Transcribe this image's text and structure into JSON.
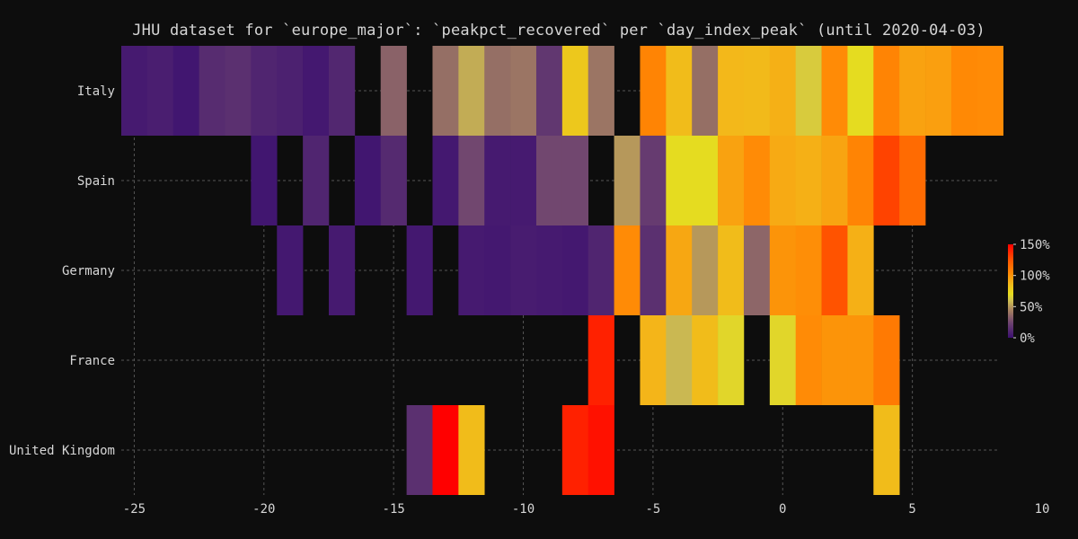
{
  "chart_data": {
    "type": "heatmap",
    "title": "JHU dataset for `europe_major`: `peakpct_recovered` per `day_index_peak` (until 2020-04-03)",
    "xlabel": "",
    "ylabel": "",
    "x_range": [
      -25.5,
      10
    ],
    "x_ticks": [
      -25,
      -20,
      -15,
      -10,
      -5,
      0,
      5,
      10
    ],
    "x_tick_labels": [
      "-25",
      "-20",
      "-15",
      "-10",
      "-5",
      "0",
      "5",
      "10"
    ],
    "rows": [
      "Italy",
      "Spain",
      "Germany",
      "France",
      "United Kingdom"
    ],
    "colorbar": {
      "min": 0,
      "max": 150,
      "ticks": [
        0,
        50,
        100,
        150
      ],
      "tick_labels": [
        "0%",
        "50%",
        "100%",
        "150%"
      ]
    },
    "grid": true,
    "series": [
      {
        "name": "Italy",
        "x": [
          -25,
          -24,
          -23,
          -22,
          -21,
          -20,
          -19,
          -18,
          -17,
          -15,
          -13,
          -12,
          -11,
          -10,
          -9,
          -8,
          -7,
          -5,
          -4,
          -3,
          -2,
          -1,
          0,
          1,
          2,
          3,
          4,
          5,
          6,
          7,
          8
        ],
        "values": [
          5,
          7,
          3,
          13,
          15,
          10,
          8,
          4,
          11,
          34,
          38,
          55,
          38,
          40,
          18,
          80,
          40,
          106,
          85,
          38,
          87,
          86,
          90,
          64,
          103,
          70,
          106,
          95,
          96,
          104,
          103
        ]
      },
      {
        "name": "Spain",
        "x": [
          -20,
          -18,
          -16,
          -15,
          -13,
          -12,
          -11,
          -10,
          -9,
          -8,
          -6,
          -5,
          -4,
          -3,
          -2,
          -1,
          0,
          1,
          2,
          3,
          4,
          5
        ],
        "values": [
          3,
          10,
          3,
          12,
          4,
          25,
          5,
          5,
          25,
          25,
          50,
          20,
          70,
          70,
          95,
          103,
          92,
          90,
          94,
          106,
          130,
          116
        ],
        "values_note": ""
      },
      {
        "name": "Germany",
        "x": [
          -19,
          -17,
          -14,
          -12,
          -11,
          -10,
          -9,
          -8,
          -7,
          -6,
          -5,
          -4,
          -3,
          -2,
          -1,
          0,
          1,
          2,
          3
        ],
        "values": [
          4,
          5,
          4,
          5,
          4,
          6,
          5,
          4,
          10,
          103,
          15,
          93,
          50,
          85,
          35,
          100,
          102,
          125,
          90
        ]
      },
      {
        "name": "France",
        "x": [
          -7,
          -5,
          -4,
          -3,
          -2,
          0,
          1,
          2,
          3,
          4
        ],
        "values": [
          140,
          88,
          58,
          85,
          68,
          68,
          103,
          100,
          100,
          110
        ]
      },
      {
        "name": "United Kingdom",
        "x": [
          -14,
          -13,
          -12,
          -8,
          -7,
          4
        ],
        "values": [
          15,
          150,
          85,
          140,
          145,
          85
        ]
      }
    ]
  }
}
